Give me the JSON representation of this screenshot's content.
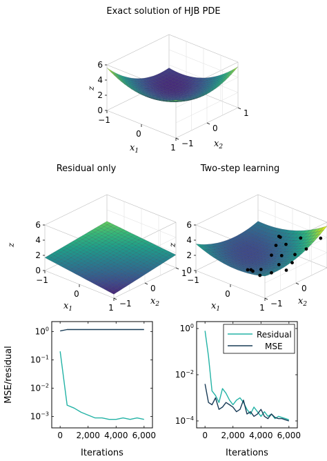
{
  "chart_data": [
    {
      "type": "surface",
      "title": "Exact solution of HJB PDE",
      "xlabel": "x1",
      "ylabel": "x2",
      "zlabel": "z",
      "x_ticks": [
        "−1",
        "0",
        "1"
      ],
      "y_ticks": [
        "−1",
        "0",
        "1"
      ],
      "z_ticks": [
        "0",
        "2",
        "4",
        "6"
      ],
      "xlim": [
        -1,
        1
      ],
      "ylim": [
        -1,
        1
      ],
      "zlim": [
        0,
        6
      ],
      "surface": "z = x1^2 + x2^2 + x1*x2 + 0.5*x1 + 0.5*x2 + 1.5 (approximate bowl)",
      "colormap": "viridis"
    },
    {
      "type": "surface",
      "title": "Residual only",
      "xlabel": "x1",
      "ylabel": "x2",
      "zlabel": "z",
      "x_ticks": [
        "−1",
        "0",
        "1"
      ],
      "y_ticks": [
        "−1",
        "0",
        "1"
      ],
      "z_ticks": [
        "0",
        "2",
        "4",
        "6"
      ],
      "xlim": [
        -1,
        1
      ],
      "ylim": [
        -1,
        1
      ],
      "zlim": [
        0,
        6
      ],
      "surface": "nearly flat plane around z = 1 to 2.5",
      "colormap": "viridis"
    },
    {
      "type": "surface",
      "title": "Two-step learning",
      "xlabel": "x1",
      "ylabel": "x2",
      "zlabel": "z",
      "x_ticks": [
        "−1",
        "0",
        "1"
      ],
      "y_ticks": [
        "−1",
        "0",
        "1"
      ],
      "z_ticks": [
        "0",
        "2",
        "4",
        "6"
      ],
      "xlim": [
        -1,
        1
      ],
      "ylim": [
        -1,
        1
      ],
      "zlim": [
        0,
        6
      ],
      "colormap": "viridis",
      "data_points": [
        [
          0.05,
          0.55,
          3.2
        ],
        [
          0.1,
          0.45,
          3.6
        ],
        [
          0.15,
          0.3,
          2.8
        ],
        [
          0.2,
          0.1,
          2.0
        ],
        [
          0.35,
          0.4,
          3.1
        ],
        [
          0.45,
          0.15,
          2.3
        ],
        [
          0.55,
          0.65,
          3.8
        ],
        [
          0.55,
          -0.05,
          1.7
        ],
        [
          0.7,
          0.3,
          2.6
        ],
        [
          0.8,
          0.1,
          2.1
        ],
        [
          0.85,
          0.5,
          3.2
        ],
        [
          0.95,
          0.85,
          4.1
        ],
        [
          0.3,
          -0.35,
          1.2
        ],
        [
          0.1,
          -0.45,
          1.0
        ],
        [
          0.05,
          -0.5,
          1.0
        ],
        [
          0.2,
          -0.5,
          1.1
        ],
        [
          0.65,
          -0.4,
          1.5
        ],
        [
          0.9,
          -0.2,
          1.9
        ],
        [
          0.45,
          -0.55,
          1.1
        ]
      ]
    },
    {
      "type": "line",
      "xlabel": "Iterations",
      "ylabel": "MSE/residual",
      "yscale": "log",
      "xlim": [
        -600,
        6600
      ],
      "ylim_log10": [
        -3.4,
        0.35
      ],
      "x_ticks": [
        "0",
        "2,000",
        "4,000",
        "6,000"
      ],
      "y_ticks": [
        "10^0",
        "10^-1",
        "10^-2",
        "10^-3"
      ],
      "series": [
        {
          "color": "#22b2a5",
          "x": [
            0,
            500,
            1000,
            1500,
            2000,
            2500,
            3000,
            3500,
            4000,
            4500,
            5000,
            5500,
            6000
          ],
          "log10_y": [
            -0.7,
            -2.6,
            -2.7,
            -2.85,
            -2.95,
            -3.05,
            -3.05,
            -3.1,
            -3.1,
            -3.05,
            -3.1,
            -3.05,
            -3.1
          ]
        },
        {
          "color": "#173a55",
          "x": [
            0,
            500,
            1000,
            2000,
            3000,
            4000,
            5000,
            6000
          ],
          "log10_y": [
            0.02,
            0.07,
            0.07,
            0.07,
            0.07,
            0.07,
            0.07,
            0.07
          ]
        }
      ]
    },
    {
      "type": "line",
      "xlabel": "Iterations",
      "ylabel": "",
      "yscale": "log",
      "xlim": [
        -600,
        6600
      ],
      "ylim_log10": [
        -4.3,
        0.3
      ],
      "x_ticks": [
        "0",
        "2,000",
        "4,000",
        "6,000"
      ],
      "y_ticks": [
        "10^0",
        "10^-2",
        "10^-4"
      ],
      "legend_position": "top-right",
      "series": [
        {
          "name": "Residual",
          "color": "#22b2a5",
          "x": [
            0,
            250,
            500,
            750,
            1000,
            1250,
            1500,
            1750,
            2000,
            2250,
            2500,
            2750,
            3000,
            3250,
            3500,
            3750,
            4000,
            4250,
            4500,
            4750,
            5000,
            5250,
            5500,
            5750,
            6000
          ],
          "log10_y": [
            -0.1,
            -1.2,
            -2.7,
            -2.9,
            -3.2,
            -2.6,
            -2.8,
            -3.1,
            -3.3,
            -3.1,
            -3.0,
            -3.2,
            -3.5,
            -3.7,
            -3.4,
            -3.6,
            -3.8,
            -3.6,
            -3.8,
            -3.7,
            -3.9,
            -3.8,
            -3.85,
            -3.9,
            -3.95
          ]
        },
        {
          "name": "MSE",
          "color": "#173a55",
          "x": [
            0,
            250,
            500,
            750,
            1000,
            1250,
            1500,
            1750,
            2000,
            2250,
            2500,
            2750,
            3000,
            3250,
            3500,
            3750,
            4000,
            4250,
            4500,
            4750,
            5000,
            5250,
            5500,
            5750,
            6000
          ],
          "log10_y": [
            -2.4,
            -3.2,
            -3.3,
            -3.0,
            -3.5,
            -3.4,
            -3.2,
            -3.3,
            -3.4,
            -3.6,
            -3.5,
            -3.1,
            -3.7,
            -3.6,
            -3.8,
            -3.7,
            -3.5,
            -3.8,
            -3.9,
            -3.7,
            -3.85,
            -3.9,
            -3.9,
            -3.95,
            -4.0
          ]
        }
      ]
    }
  ]
}
